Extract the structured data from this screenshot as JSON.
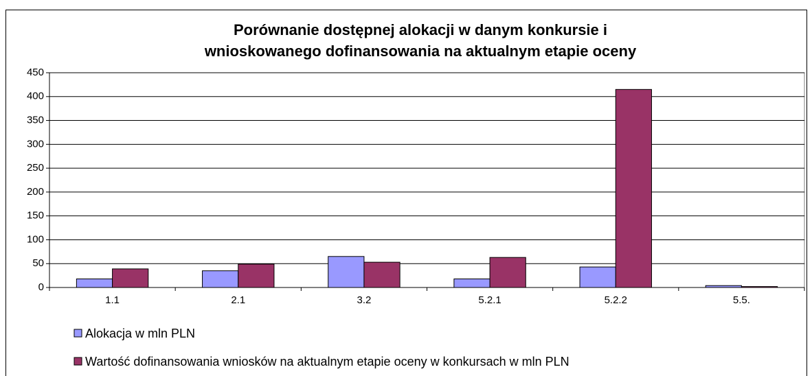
{
  "chart_data": {
    "type": "bar",
    "title": [
      "Porównanie dostępnej alokacji w danym konkursie i",
      "wnioskowanego dofinansowania na aktualnym etapie oceny"
    ],
    "categories": [
      "1.1",
      "2.1",
      "3.2",
      "5.2.1",
      "5.2.2",
      "5.5."
    ],
    "series": [
      {
        "name": "Alokacja w mln PLN",
        "color": "#9999ff",
        "values": [
          18,
          35,
          65,
          18,
          43,
          4
        ]
      },
      {
        "name": "Wartość dofinansowania wniosków na aktualnym etapie oceny w konkursach w mln PLN",
        "color": "#993366",
        "values": [
          39,
          49,
          53,
          63,
          415,
          2
        ]
      }
    ],
    "ylim": [
      0,
      450
    ],
    "yticks": [
      0,
      50,
      100,
      150,
      200,
      250,
      300,
      350,
      400,
      450
    ],
    "grid": true,
    "legend": "bottom"
  }
}
